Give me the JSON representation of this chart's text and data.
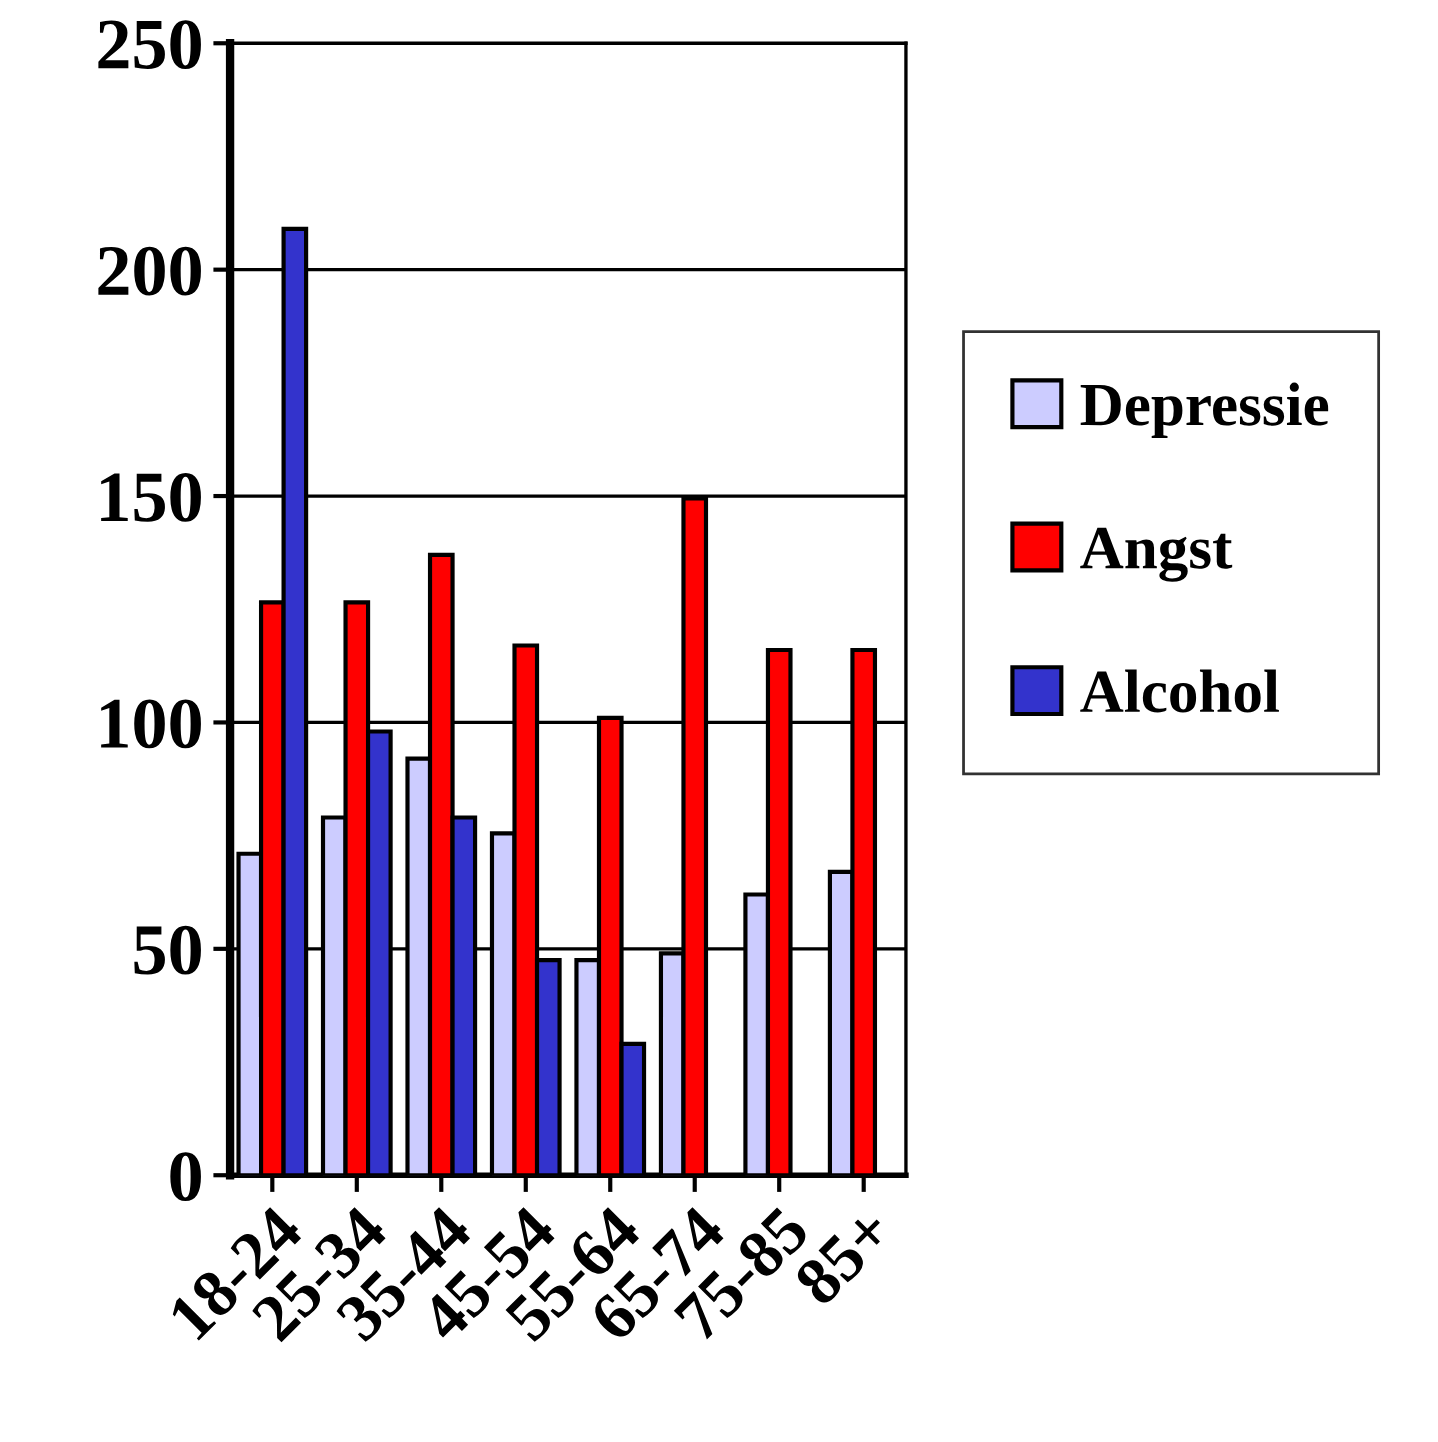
{
  "chart_data": {
    "type": "bar",
    "categories": [
      "18-24",
      "25-34",
      "35-44",
      "45-54",
      "55-64",
      "65-74",
      "75-85",
      "85+"
    ],
    "series": [
      {
        "name": "Depressie",
        "color": "#ccccff",
        "values": [
          71,
          79,
          92,
          75.5,
          47.5,
          49,
          62,
          67
        ]
      },
      {
        "name": "Angst",
        "color": "#ff0000",
        "values": [
          126.5,
          126.5,
          137,
          117,
          101,
          149.5,
          116,
          116
        ]
      },
      {
        "name": "Alcohol",
        "color": "#3333cc",
        "values": [
          209,
          98,
          79,
          47.5,
          29,
          null,
          null,
          null
        ]
      }
    ],
    "ylim": [
      0,
      250
    ],
    "yticks": [
      0,
      50,
      100,
      150,
      200,
      250
    ],
    "grid": "y",
    "legend": "right"
  }
}
